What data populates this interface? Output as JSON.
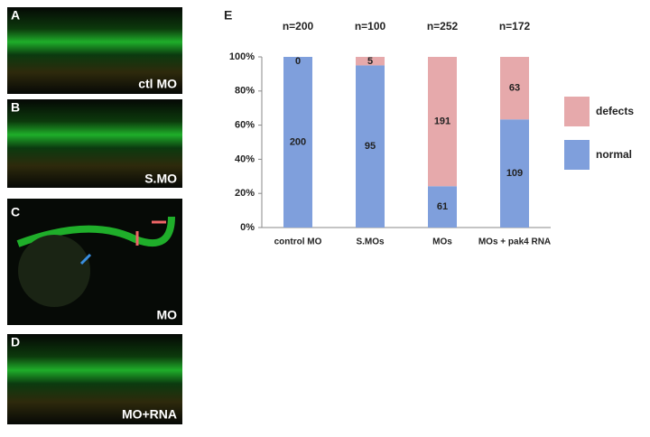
{
  "panels": [
    {
      "letter": "A",
      "label": "ctl MO"
    },
    {
      "letter": "B",
      "label": "S.MO"
    },
    {
      "letter": "C",
      "label": "MO"
    },
    {
      "letter": "D",
      "label": "MO+RNA"
    }
  ],
  "chart_data": {
    "type": "bar",
    "stacked": true,
    "normalize": true,
    "panel_letter": "E",
    "categories": [
      "control MO",
      "S.MOs",
      "MOs",
      "MOs + pak4 RNA"
    ],
    "annotations": [
      "n=200",
      "n=100",
      "n=252",
      "n=172"
    ],
    "series": [
      {
        "name": "normal",
        "color": "#7f9fdc",
        "values": [
          200,
          95,
          61,
          109
        ]
      },
      {
        "name": "defects",
        "color": "#e6a9ab",
        "values": [
          0,
          5,
          191,
          63
        ]
      }
    ],
    "ylim": [
      0,
      100
    ],
    "yticks": [
      {
        "value": 0,
        "label": "0%"
      },
      {
        "value": 20,
        "label": "20%"
      },
      {
        "value": 40,
        "label": "40%"
      },
      {
        "value": 60,
        "label": "60%"
      },
      {
        "value": 80,
        "label": "80%"
      },
      {
        "value": 100,
        "label": "100%"
      }
    ],
    "legend": "right"
  }
}
